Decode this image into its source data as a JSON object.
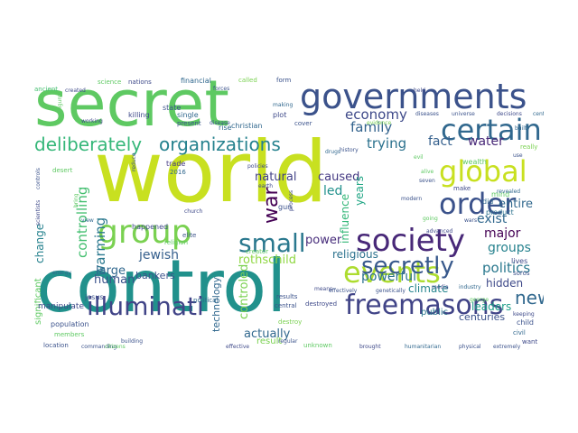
{
  "wordcloud": {
    "background": "#ffffff",
    "words": [
      {
        "text": "world",
        "color": "#c8e020"
      },
      {
        "text": "control",
        "color": "#21918c"
      },
      {
        "text": "secret",
        "color": "#5ec962"
      },
      {
        "text": "governments",
        "color": "#3b528b"
      },
      {
        "text": "society",
        "color": "#482878"
      },
      {
        "text": "freemasons",
        "color": "#414487"
      },
      {
        "text": "events",
        "color": "#addc30"
      },
      {
        "text": "certain",
        "color": "#31688e"
      },
      {
        "text": "global",
        "color": "#c8e020"
      },
      {
        "text": "order",
        "color": "#3b528b"
      },
      {
        "text": "group",
        "color": "#7ad151"
      },
      {
        "text": "illuminati",
        "color": "#414487"
      },
      {
        "text": "small",
        "color": "#2a788e"
      },
      {
        "text": "secretly",
        "color": "#38598c"
      },
      {
        "text": "deliberately",
        "color": "#35b779"
      },
      {
        "text": "organizations",
        "color": "#26828e"
      },
      {
        "text": "economy",
        "color": "#3e4989"
      },
      {
        "text": "new",
        "color": "#31688e"
      },
      {
        "text": "politics",
        "color": "#2a788e"
      },
      {
        "text": "family",
        "color": "#33638d"
      },
      {
        "text": "trying",
        "color": "#2c728e"
      },
      {
        "text": "fact",
        "color": "#35608d"
      },
      {
        "text": "water",
        "color": "#482878"
      },
      {
        "text": "war",
        "color": "#440154"
      },
      {
        "text": "controlling",
        "color": "#44bf70"
      },
      {
        "text": "warming",
        "color": "#2a788e"
      },
      {
        "text": "jewish",
        "color": "#355f8d"
      },
      {
        "text": "large",
        "color": "#31688e"
      },
      {
        "text": "controled",
        "color": "#7ad151"
      },
      {
        "text": "natural",
        "color": "#424186"
      },
      {
        "text": "caused",
        "color": "#443983"
      },
      {
        "text": "led",
        "color": "#21918c"
      },
      {
        "text": "influence",
        "color": "#35b779"
      },
      {
        "text": "years",
        "color": "#21a685"
      },
      {
        "text": "rothschild",
        "color": "#90d743"
      },
      {
        "text": "power",
        "color": "#472d7b"
      },
      {
        "text": "powerful",
        "color": "#2c728e"
      },
      {
        "text": "actually",
        "color": "#31688e"
      },
      {
        "text": "human",
        "color": "#3b528b"
      },
      {
        "text": "exist",
        "color": "#31688e"
      },
      {
        "text": "groups",
        "color": "#26828e"
      },
      {
        "text": "major",
        "color": "#440154"
      },
      {
        "text": "leaders",
        "color": "#1f9e89"
      },
      {
        "text": "hidden",
        "color": "#3e4989"
      },
      {
        "text": "entire",
        "color": "#31688e"
      },
      {
        "text": "religious",
        "color": "#2c728e"
      },
      {
        "text": "change",
        "color": "#26828e"
      },
      {
        "text": "bankers",
        "color": "#3b528b"
      },
      {
        "text": "climate",
        "color": "#25858e"
      },
      {
        "text": "centuries",
        "color": "#3b528b"
      },
      {
        "text": "public",
        "color": "#2a788e"
      },
      {
        "text": "technology",
        "color": "#31688e"
      },
      {
        "text": "result",
        "color": "#7ad151"
      },
      {
        "text": "significant",
        "color": "#5ec962"
      },
      {
        "text": "manipulate",
        "color": "#3e4989"
      },
      {
        "text": "jesus",
        "color": "#3b528b"
      },
      {
        "text": "population",
        "color": "#3b528b"
      },
      {
        "text": "financial",
        "color": "#31688e"
      },
      {
        "text": "nations",
        "color": "#3e4989"
      },
      {
        "text": "science",
        "color": "#5ec962"
      },
      {
        "text": "ancient",
        "color": "#44bf70"
      },
      {
        "text": "called",
        "color": "#7ad151"
      },
      {
        "text": "form",
        "color": "#3b528b"
      },
      {
        "text": "state",
        "color": "#3b528b"
      },
      {
        "text": "killing",
        "color": "#3e4989"
      },
      {
        "text": "single",
        "color": "#31688e"
      },
      {
        "text": "present",
        "color": "#3b528b"
      },
      {
        "text": "christian",
        "color": "#31688e"
      },
      {
        "text": "rise",
        "color": "#31688e"
      },
      {
        "text": "plot",
        "color": "#3e4989"
      },
      {
        "text": "cover",
        "color": "#3b528b"
      },
      {
        "text": "trade",
        "color": "#443983"
      },
      {
        "text": "2016",
        "color": "#31688e"
      },
      {
        "text": "gun",
        "color": "#3b528b"
      },
      {
        "text": "happened",
        "color": "#3e4989"
      },
      {
        "text": "elite",
        "color": "#3b528b"
      },
      {
        "text": "religion",
        "color": "#5ec962"
      },
      {
        "text": "wealth",
        "color": "#5ec962"
      },
      {
        "text": "make",
        "color": "#3e4989"
      },
      {
        "text": "product",
        "color": "#2c728e"
      },
      {
        "text": "lives",
        "color": "#3e4989"
      },
      {
        "text": "soros",
        "color": "#3b528b"
      },
      {
        "text": "really",
        "color": "#7ad151"
      },
      {
        "text": "child",
        "color": "#3b528b"
      },
      {
        "text": "civil",
        "color": "#31688e"
      },
      {
        "text": "want",
        "color": "#3e4989"
      },
      {
        "text": "destroy",
        "color": "#7ad151"
      },
      {
        "text": "central",
        "color": "#3b528b"
      },
      {
        "text": "results",
        "color": "#3b528b"
      },
      {
        "text": "political",
        "color": "#31688e"
      },
      {
        "text": "destroyed",
        "color": "#3e4989"
      },
      {
        "text": "location",
        "color": "#3b528b"
      },
      {
        "text": "members",
        "color": "#5ec962"
      },
      {
        "text": "mind",
        "color": "#5ec962"
      },
      {
        "text": "did",
        "color": "#31688e"
      },
      {
        "text": "disease",
        "color": "#3b528b"
      },
      {
        "text": "church",
        "color": "#3e4989"
      },
      {
        "text": "creator",
        "color": "#5ec962"
      },
      {
        "text": "drugs",
        "color": "#31688e"
      },
      {
        "text": "history",
        "color": "#3b528b"
      },
      {
        "text": "policies",
        "color": "#3e4989"
      },
      {
        "text": "unknown",
        "color": "#5ec962"
      },
      {
        "text": "regular",
        "color": "#3b528b"
      },
      {
        "text": "means",
        "color": "#3e4989"
      },
      {
        "text": "brought",
        "color": "#3e4989"
      },
      {
        "text": "humanitarian",
        "color": "#31688e"
      },
      {
        "text": "physical",
        "color": "#3b528b"
      },
      {
        "text": "extremely",
        "color": "#3b528b"
      },
      {
        "text": "industry",
        "color": "#31688e"
      },
      {
        "text": "media",
        "color": "#3e4989"
      },
      {
        "text": "genetically",
        "color": "#3b528b"
      },
      {
        "text": "effectively",
        "color": "#3b528b"
      },
      {
        "text": "wars",
        "color": "#3b528b"
      },
      {
        "text": "advanced",
        "color": "#3e4989"
      },
      {
        "text": "seven",
        "color": "#3b528b"
      },
      {
        "text": "alive",
        "color": "#5ec962"
      },
      {
        "text": "keeping",
        "color": "#3e4989"
      },
      {
        "text": "george",
        "color": "#5ec962"
      },
      {
        "text": "universe",
        "color": "#3b528b"
      },
      {
        "text": "decisions",
        "color": "#3e4989"
      },
      {
        "text": "century",
        "color": "#31688e"
      },
      {
        "text": "diseases",
        "color": "#3b528b"
      },
      {
        "text": "evidence",
        "color": "#7ad151"
      },
      {
        "text": "created",
        "color": "#3e4989"
      },
      {
        "text": "making",
        "color": "#31688e"
      },
      {
        "text": "forces",
        "color": "#3b528b"
      },
      {
        "text": "figures",
        "color": "#5ec962"
      },
      {
        "text": "working",
        "color": "#3e4989"
      },
      {
        "text": "desert",
        "color": "#5ec962"
      },
      {
        "text": "controls",
        "color": "#3b528b"
      },
      {
        "text": "scientists",
        "color": "#3e4989"
      },
      {
        "text": "energy",
        "color": "#31688e"
      },
      {
        "text": "commanding",
        "color": "#3b528b"
      },
      {
        "text": "citizens",
        "color": "#5ec962"
      },
      {
        "text": "effective",
        "color": "#3e4989"
      },
      {
        "text": "modern",
        "color": "#3b528b"
      },
      {
        "text": "earth",
        "color": "#3e4989"
      },
      {
        "text": "going",
        "color": "#5ec962"
      },
      {
        "text": "revealed",
        "color": "#31688e"
      },
      {
        "text": "reduce",
        "color": "#3b528b"
      },
      {
        "text": "bring",
        "color": "#5ec962"
      },
      {
        "text": "process",
        "color": "#3e4989"
      },
      {
        "text": "view",
        "color": "#31688e"
      },
      {
        "text": "building",
        "color": "#3b528b"
      },
      {
        "text": "held",
        "color": "#3e4989"
      },
      {
        "text": "evil",
        "color": "#5ec962"
      },
      {
        "text": "built",
        "color": "#31688e"
      },
      {
        "text": "use",
        "color": "#3b528b"
      }
    ]
  }
}
